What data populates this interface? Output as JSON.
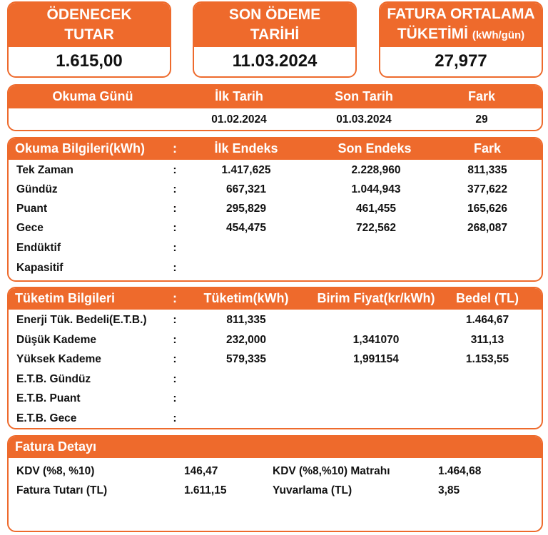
{
  "summary": {
    "amount_title_1": "ÖDENECEK",
    "amount_title_2": "TUTAR",
    "amount_value": "1.615,00",
    "due_title_1": "SON ÖDEME",
    "due_title_2": "TARİHİ",
    "due_value": "11.03.2024",
    "avg_title_1": "FATURA ORTALAMA",
    "avg_title_2": "TÜKETİMİ",
    "avg_unit": "(kWh/gün)",
    "avg_value": "27,977"
  },
  "reading_day": {
    "headers": [
      "Okuma Günü",
      "İlk Tarih",
      "Son Tarih",
      "Fark"
    ],
    "values": [
      "",
      "01.02.2024",
      "01.03.2024",
      "29"
    ]
  },
  "reading_info": {
    "headers": [
      "Okuma Bilgileri(kWh)",
      ":",
      "İlk Endeks",
      "Son Endeks",
      "Fark"
    ],
    "rows": [
      [
        "Tek Zaman",
        ":",
        "1.417,625",
        "2.228,960",
        "811,335"
      ],
      [
        "Gündüz",
        ":",
        "667,321",
        "1.044,943",
        "377,622"
      ],
      [
        "Puant",
        ":",
        "295,829",
        "461,455",
        "165,626"
      ],
      [
        "Gece",
        ":",
        "454,475",
        "722,562",
        "268,087"
      ],
      [
        "Endüktif",
        ":",
        "",
        "",
        ""
      ],
      [
        "Kapasitif",
        ":",
        "",
        "",
        ""
      ]
    ]
  },
  "consumption_info": {
    "headers": [
      "Tüketim Bilgileri",
      ":",
      "Tüketim(kWh)",
      "Birim Fiyat(kr/kWh)",
      "Bedel (TL)"
    ],
    "rows": [
      [
        "Enerji Tük. Bedeli(E.T.B.)",
        ":",
        "811,335",
        "",
        "1.464,67"
      ],
      [
        "Düşük Kademe",
        ":",
        "232,000",
        "1,341070",
        "311,13"
      ],
      [
        "Yüksek Kademe",
        ":",
        "579,335",
        "1,991154",
        "1.153,55"
      ],
      [
        "E.T.B. Gündüz",
        ":",
        "",
        "",
        ""
      ],
      [
        "E.T.B. Puant",
        ":",
        "",
        "",
        ""
      ],
      [
        "E.T.B. Gece",
        ":",
        "",
        "",
        ""
      ]
    ]
  },
  "invoice_detail": {
    "title": "Fatura Detayı",
    "rows": [
      [
        "KDV (%8, %10)",
        "146,47",
        "KDV (%8,%10) Matrahı",
        "1.464,68"
      ],
      [
        "Fatura Tutarı (TL)",
        "1.611,15",
        "Yuvarlama (TL)",
        "3,85"
      ]
    ]
  },
  "colors": {
    "accent": "#ee6a2c",
    "text": "#111111",
    "background": "#ffffff"
  }
}
